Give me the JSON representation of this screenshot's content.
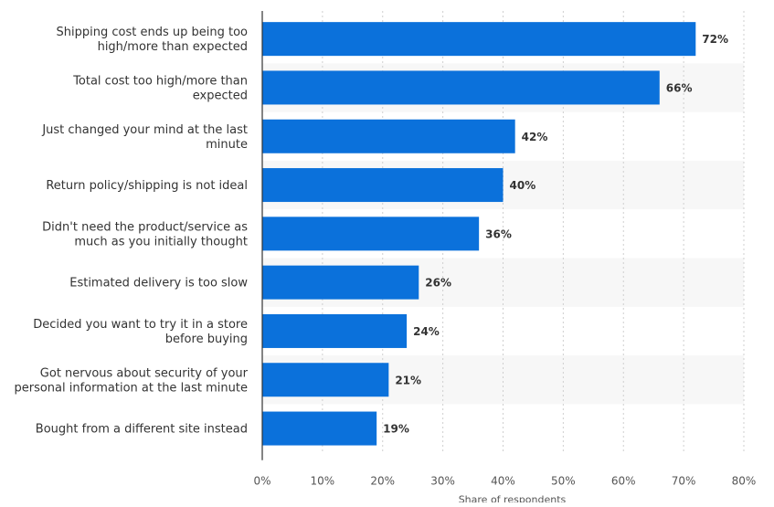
{
  "chart_data": {
    "type": "bar",
    "orientation": "horizontal",
    "categories": [
      [
        "Shipping cost ends up being too",
        "high/more than expected"
      ],
      [
        "Total cost too high/more than",
        "expected"
      ],
      [
        "Just changed your mind at the last",
        "minute"
      ],
      [
        "Return policy/shipping is not ideal"
      ],
      [
        "Didn't need the product/service as",
        "much as you initially thought"
      ],
      [
        "Estimated delivery is too slow"
      ],
      [
        "Decided you want to try it in a store",
        "before buying"
      ],
      [
        "Got nervous about security of your",
        "personal information at the last minute"
      ],
      [
        "Bought from a different site instead"
      ]
    ],
    "values": [
      72,
      66,
      42,
      40,
      36,
      26,
      24,
      21,
      19
    ],
    "value_labels": [
      "72%",
      "66%",
      "42%",
      "40%",
      "36%",
      "26%",
      "24%",
      "21%",
      "19%"
    ],
    "xlim": [
      0,
      80
    ],
    "x_ticks": [
      0,
      10,
      20,
      30,
      40,
      50,
      60,
      70,
      80
    ],
    "x_tick_labels": [
      "0%",
      "10%",
      "20%",
      "30%",
      "40%",
      "50%",
      "60%",
      "70%",
      "80%"
    ],
    "xlabel": "Share of respondents",
    "grid": "vertical-dashed",
    "bar_color": "#0b71db",
    "stripe_color": "#f7f7f7",
    "text_color": "#333333"
  }
}
